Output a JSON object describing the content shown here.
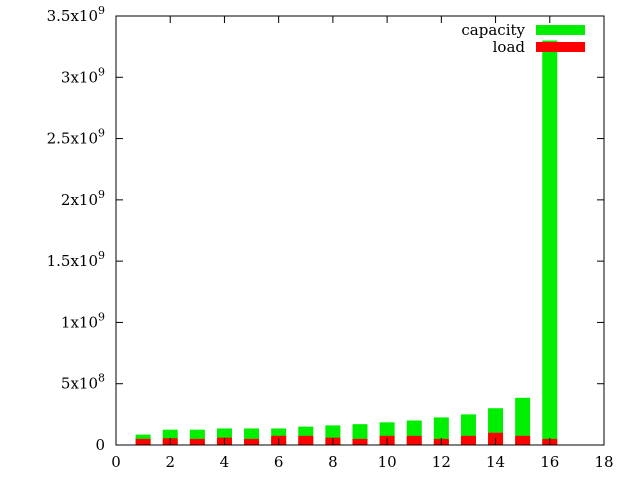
{
  "chart_data": {
    "type": "bar",
    "title": "",
    "xlabel": "",
    "ylabel": "",
    "xlim": [
      0,
      18
    ],
    "ylim": [
      0,
      3500000000
    ],
    "grid": false,
    "legend_position": "top-right",
    "x_ticks": [
      {
        "value": 0,
        "label": "0"
      },
      {
        "value": 2,
        "label": "2"
      },
      {
        "value": 4,
        "label": "4"
      },
      {
        "value": 6,
        "label": "6"
      },
      {
        "value": 8,
        "label": "8"
      },
      {
        "value": 10,
        "label": "10"
      },
      {
        "value": 12,
        "label": "12"
      },
      {
        "value": 14,
        "label": "14"
      },
      {
        "value": 16,
        "label": "16"
      },
      {
        "value": 18,
        "label": "18"
      }
    ],
    "y_ticks": [
      {
        "value": 0,
        "base": "0",
        "exp": ""
      },
      {
        "value": 500000000,
        "base": "5x10",
        "exp": "8"
      },
      {
        "value": 1000000000,
        "base": "1x10",
        "exp": "9"
      },
      {
        "value": 1500000000,
        "base": "1.5x10",
        "exp": "9"
      },
      {
        "value": 2000000000,
        "base": "2x10",
        "exp": "9"
      },
      {
        "value": 2500000000,
        "base": "2.5x10",
        "exp": "9"
      },
      {
        "value": 3000000000,
        "base": "3x10",
        "exp": "9"
      },
      {
        "value": 3500000000,
        "base": "3.5x10",
        "exp": "9"
      }
    ],
    "x": [
      1,
      2,
      3,
      4,
      5,
      6,
      7,
      8,
      9,
      10,
      11,
      12,
      13,
      14,
      15,
      16
    ],
    "series": [
      {
        "name": "capacity",
        "color": "#00ee00",
        "values": [
          85000000,
          125000000,
          125000000,
          135000000,
          135000000,
          135000000,
          150000000,
          160000000,
          170000000,
          185000000,
          200000000,
          225000000,
          250000000,
          300000000,
          385000000,
          3300000000
        ]
      },
      {
        "name": "load",
        "color": "#ff0000",
        "values": [
          50000000,
          55000000,
          50000000,
          60000000,
          50000000,
          75000000,
          75000000,
          60000000,
          50000000,
          75000000,
          75000000,
          50000000,
          75000000,
          100000000,
          75000000,
          50000000
        ]
      }
    ]
  }
}
